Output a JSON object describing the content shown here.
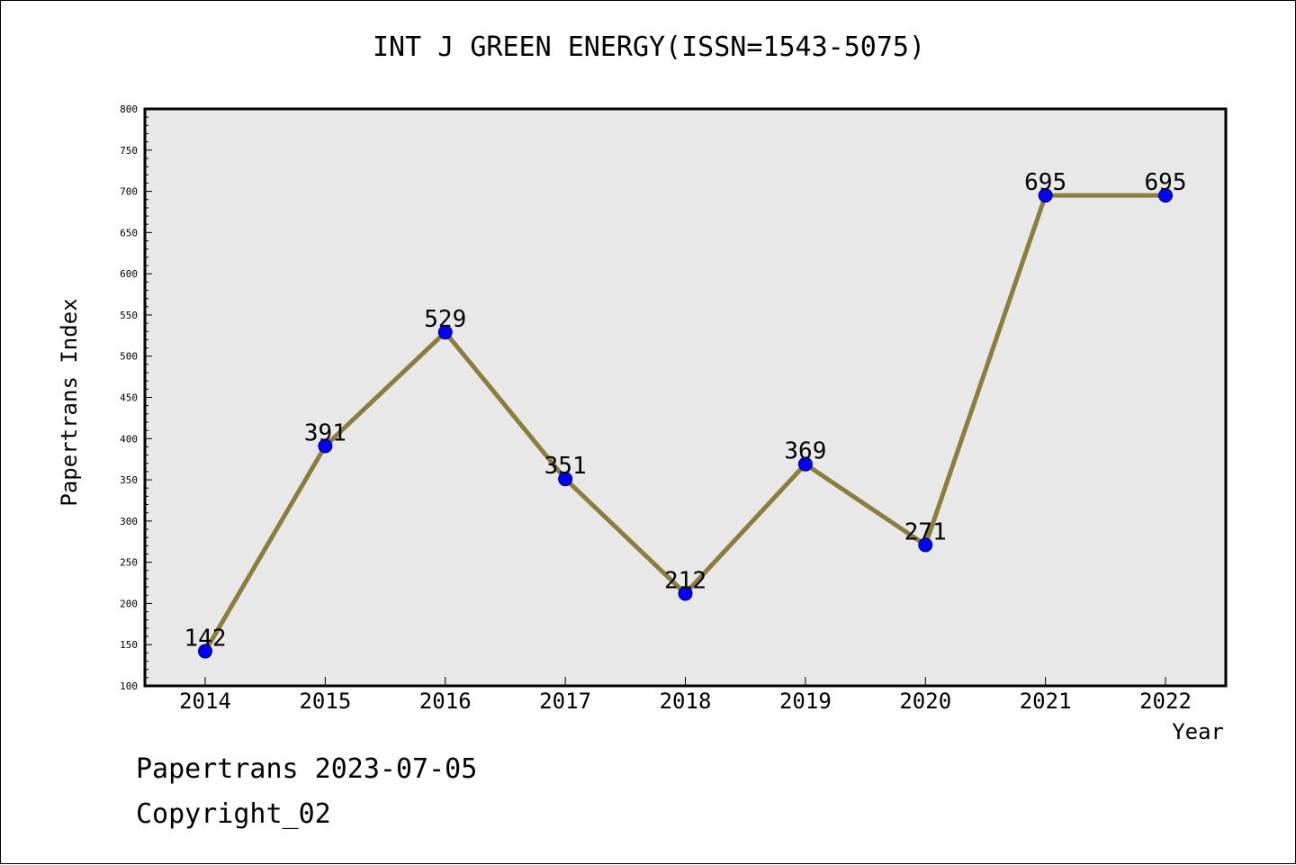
{
  "chart_data": {
    "type": "line",
    "title": "INT J GREEN ENERGY(ISSN=1543-5075)",
    "xlabel": "Year",
    "ylabel": "Papertrans Index",
    "categories": [
      "2014",
      "2015",
      "2016",
      "2017",
      "2018",
      "2019",
      "2020",
      "2021",
      "2022"
    ],
    "series": [
      {
        "values": [
          142,
          391,
          529,
          351,
          212,
          369,
          271,
          695,
          695
        ]
      }
    ],
    "ylim": [
      100,
      800
    ],
    "yticks": [
      100,
      150,
      200,
      250,
      300,
      350,
      400,
      450,
      500,
      550,
      600,
      650,
      700,
      750,
      800
    ],
    "grid": false,
    "colors": {
      "line": "#8b7d3a",
      "marker": "#0000ff",
      "plot_bg": "#e8e8e8"
    }
  },
  "footer": {
    "line1": "Papertrans 2023-07-05",
    "line2": "Copyright_02"
  }
}
